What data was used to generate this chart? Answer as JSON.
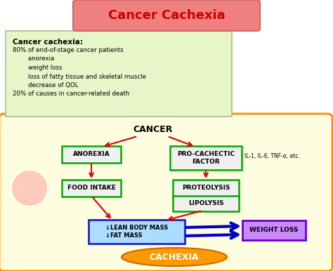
{
  "title": "Cancer Cachexia",
  "title_bg": "#f08080",
  "title_color": "#cc0000",
  "info_box_bg": "#e8f5c8",
  "info_box_border": "#aabb88",
  "info_title": "Cancer cachexia:",
  "info_lines": [
    "80% of end-of-stage cancer patients",
    "        anorexia",
    "        weight loss",
    "        loss of fatty tissue and skeletal muscle",
    "        decrease of QOL",
    "20% of causes in cancer-related death"
  ],
  "diagram_box_bg": "#fffde0",
  "diagram_box_border": "#ff8c00",
  "node_border": "#00aa00",
  "node_bg": "#f0f0f0",
  "cancer_label": "CANCER",
  "anorexia_label": "ANOREXIA",
  "food_intake_label": "FOOD INTAKE",
  "pro_cachectic_label": "PRO-CACHECTIC\nFACTOR",
  "proteolysis_label": "PROTEOLYSIS",
  "lipolysis_label": "LIPOLYSIS",
  "lean_body_label": "↓LEAN BODY MASS\n↓FAT MASS",
  "weight_loss_label": "WEIGHT LOSS",
  "cachexia_label": "CACHEXIA",
  "il_label": "IL-1, IL-6, TNF-α, etc.",
  "arrow_color": "#dd0000",
  "blue_arrow_color": "#0000cc",
  "lean_box_bg": "#aaddff",
  "lean_box_border": "#2222cc",
  "weight_loss_box_bg": "#cc88ff",
  "weight_loss_box_border": "#6600cc",
  "cachexia_ellipse_bg": "#ff9900",
  "cachexia_text_color": "#ffffff"
}
